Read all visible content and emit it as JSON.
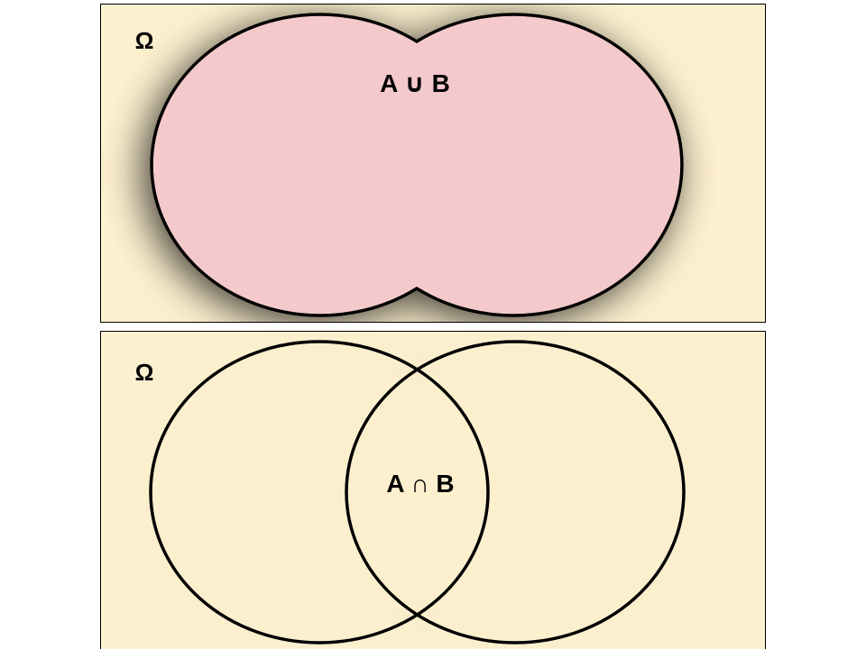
{
  "colors": {
    "universe_fill": "#fdf0cf",
    "union_fill": "#f4c9cb",
    "outline": "#000000",
    "border": "#000000"
  },
  "panels": [
    {
      "id": "union",
      "universe_label": "Ω",
      "region_label": "A ∪ B",
      "set_a_name": "A",
      "set_b_name": "B",
      "operator": "∪"
    },
    {
      "id": "intersection",
      "universe_label": "Ω",
      "region_label": "A ∩ B",
      "set_a_name": "A",
      "set_b_name": "B",
      "operator": "∩"
    }
  ]
}
